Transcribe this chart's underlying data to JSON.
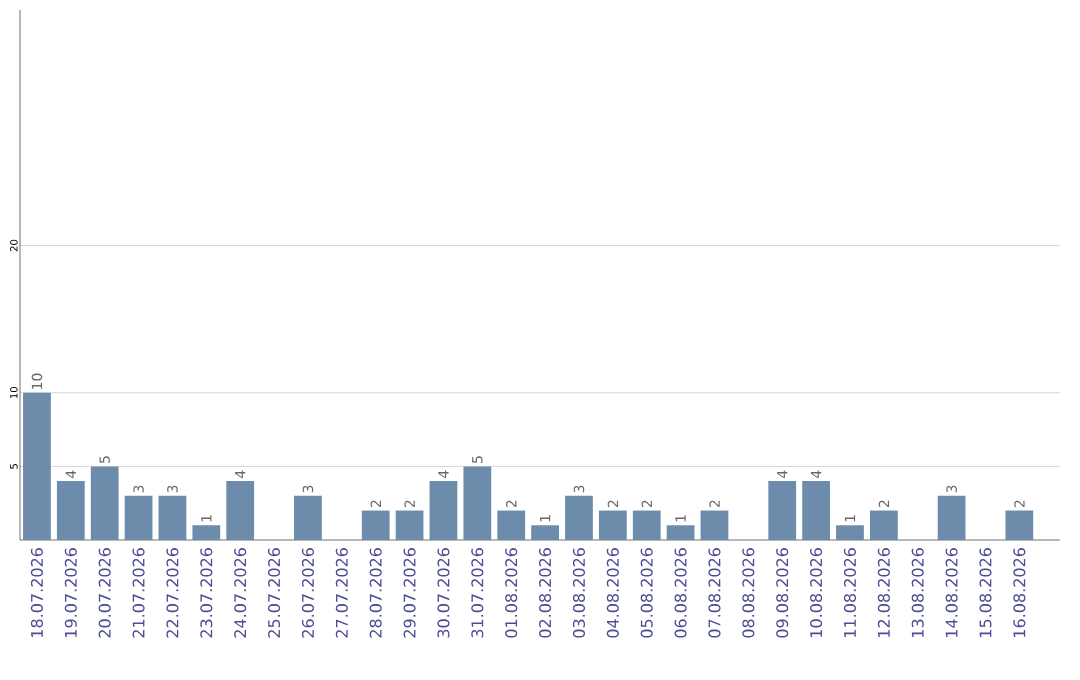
{
  "chart_data": {
    "type": "bar",
    "categories": [
      "18.07.2026",
      "19.07.2026",
      "20.07.2026",
      "21.07.2026",
      "22.07.2026",
      "23.07.2026",
      "24.07.2026",
      "25.07.2026",
      "26.07.2026",
      "27.07.2026",
      "28.07.2026",
      "29.07.2026",
      "30.07.2026",
      "31.07.2026",
      "01.08.2026",
      "02.08.2026",
      "03.08.2026",
      "04.08.2026",
      "05.08.2026",
      "06.08.2026",
      "07.08.2026",
      "08.08.2026",
      "09.08.2026",
      "10.08.2026",
      "11.08.2026",
      "12.08.2026",
      "13.08.2026",
      "14.08.2026",
      "15.08.2026",
      "16.08.2026"
    ],
    "values": [
      10,
      4,
      5,
      3,
      3,
      1,
      4,
      0,
      3,
      0,
      2,
      2,
      4,
      5,
      2,
      1,
      3,
      2,
      2,
      1,
      2,
      0,
      4,
      4,
      1,
      2,
      0,
      3,
      0,
      2
    ],
    "value_labels": [
      "10",
      "4",
      "5",
      "3",
      "3",
      "1",
      "4",
      null,
      "3",
      null,
      "2",
      "2",
      "4",
      "5",
      "2",
      "1",
      "3",
      "2",
      "2",
      "1",
      "2",
      null,
      "4",
      "4",
      "1",
      "2",
      null,
      "3",
      null,
      "2"
    ],
    "color": "#6d8cab",
    "ylim": [
      0,
      36
    ],
    "yticks": [
      5,
      10,
      20
    ],
    "grid": "y"
  }
}
